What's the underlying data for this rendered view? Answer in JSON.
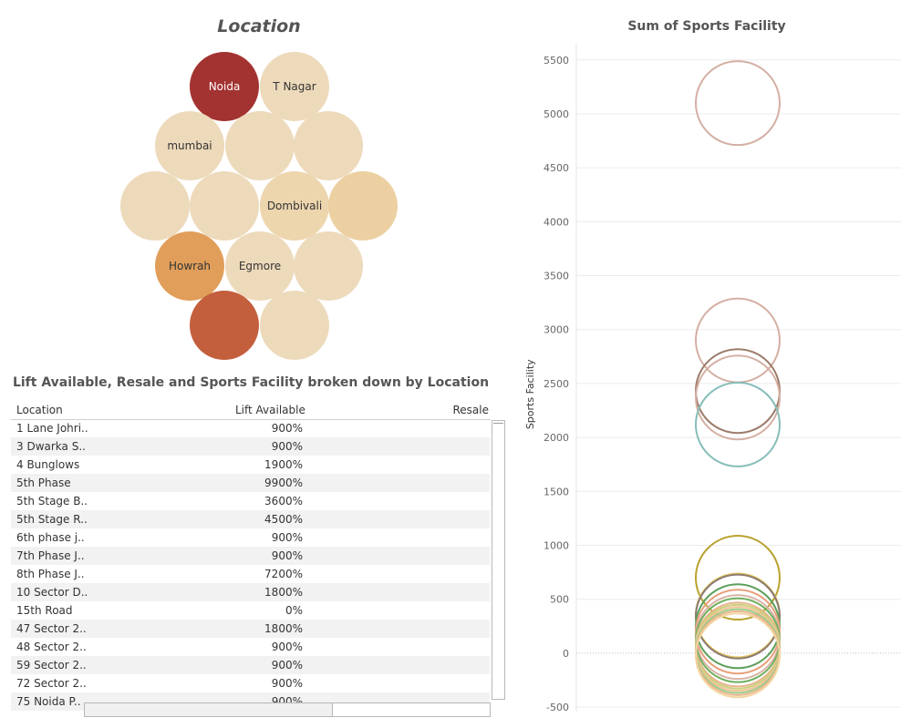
{
  "bubble": {
    "title": "Location",
    "bubbles": [
      {
        "label": "Noida",
        "color": "#A33331",
        "label_color": "#ffffff"
      },
      {
        "label": "T Nagar",
        "color": "#EDDABB",
        "label_color": "#333333"
      },
      {
        "label": "mumbai",
        "color": "#EDDABB",
        "label_color": "#333333"
      },
      {
        "label": "",
        "color": "#EDDABB",
        "label_color": "#333333"
      },
      {
        "label": "",
        "color": "#EDDABB",
        "label_color": "#333333"
      },
      {
        "label": "",
        "color": "#EDDABB",
        "label_color": "#333333"
      },
      {
        "label": "",
        "color": "#EDDABB",
        "label_color": "#333333"
      },
      {
        "label": "Dombivali",
        "color": "#EDD5AE",
        "label_color": "#333333"
      },
      {
        "label": "",
        "color": "#ECD0A2",
        "label_color": "#333333"
      },
      {
        "label": "Howrah",
        "color": "#E09E5A",
        "label_color": "#333333"
      },
      {
        "label": "Egmore",
        "color": "#EDDABB",
        "label_color": "#333333"
      },
      {
        "label": "",
        "color": "#EDDABB",
        "label_color": "#333333"
      },
      {
        "label": "",
        "color": "#C35F3D",
        "label_color": "#ffffff"
      },
      {
        "label": "",
        "color": "#EDDABB",
        "label_color": "#333333"
      }
    ]
  },
  "table": {
    "title": "Lift Available, Resale and Sports Facility broken down by Location",
    "headers": {
      "location": "Location",
      "lift": "Lift Available",
      "resale": "Resale"
    },
    "rows": [
      {
        "location": "1 Lane Johri..",
        "lift": "900%"
      },
      {
        "location": "3 Dwarka S..",
        "lift": "900%"
      },
      {
        "location": "4 Bunglows",
        "lift": "1900%"
      },
      {
        "location": "5th Phase",
        "lift": "9900%"
      },
      {
        "location": "5th Stage B..",
        "lift": "3600%"
      },
      {
        "location": "5th Stage R..",
        "lift": "4500%"
      },
      {
        "location": "6th phase j..",
        "lift": "900%"
      },
      {
        "location": "7th Phase J..",
        "lift": "900%"
      },
      {
        "location": "8th Phase J..",
        "lift": "7200%"
      },
      {
        "location": "10 Sector D..",
        "lift": "1800%"
      },
      {
        "location": "15th Road",
        "lift": "0%"
      },
      {
        "location": "47 Sector 2..",
        "lift": "1800%"
      },
      {
        "location": "48 Sector 2..",
        "lift": "900%"
      },
      {
        "location": "59 Sector 2..",
        "lift": "900%"
      },
      {
        "location": "72 Sector 2..",
        "lift": "900%"
      },
      {
        "location": "75 Noida P..",
        "lift": "900%"
      }
    ]
  },
  "chart_data": {
    "type": "scatter",
    "title": "Sum of Sports Facility",
    "ylabel": "Sports Facility",
    "xlabel": "",
    "ylim": [
      -550,
      5650
    ],
    "yticks": [
      5500,
      5000,
      4500,
      4000,
      3500,
      3000,
      2500,
      2000,
      1500,
      1000,
      500,
      0,
      -500
    ],
    "grid": true,
    "points": [
      {
        "y": 5100,
        "color": "#D4AFA3"
      },
      {
        "y": 2900,
        "color": "#D4AFA3"
      },
      {
        "y": 2430,
        "color": "#9C7B6A"
      },
      {
        "y": 2370,
        "color": "#D4AFA3"
      },
      {
        "y": 2120,
        "color": "#86BDB9"
      },
      {
        "y": 700,
        "color": "#B9A22E"
      },
      {
        "y": 350,
        "color": "#E5C65A"
      },
      {
        "y": 340,
        "color": "#8B7A72"
      },
      {
        "y": 250,
        "color": "#5B9F5A"
      },
      {
        "y": 200,
        "color": "#E8A07A"
      },
      {
        "y": 150,
        "color": "#D9B5A8"
      },
      {
        "y": 120,
        "color": "#6FAF5C"
      },
      {
        "y": 80,
        "color": "#E8B48C"
      },
      {
        "y": 60,
        "color": "#C9D17A"
      },
      {
        "y": 40,
        "color": "#F2C39A"
      },
      {
        "y": 20,
        "color": "#9CCB86"
      },
      {
        "y": 0,
        "color": "#EAB690"
      },
      {
        "y": -20,
        "color": "#F3D6A1"
      }
    ]
  }
}
